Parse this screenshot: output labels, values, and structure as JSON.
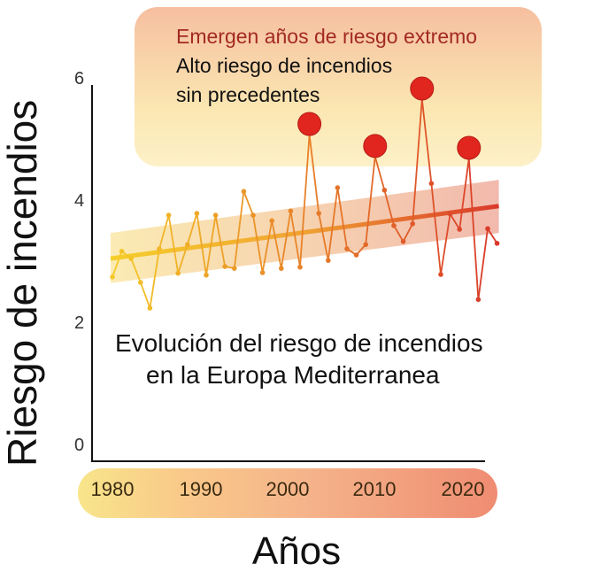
{
  "chart_data": {
    "type": "line",
    "title": "Evolución del riesgo de incendios en la Europa Mediterranea",
    "title_lines": [
      "Evolución del riesgo de incendios",
      "en la Europa Mediterranea"
    ],
    "xlabel": "Años",
    "ylabel": "Riesgo de incendios",
    "ylim": [
      0,
      6
    ],
    "yticks": [
      "0",
      "2",
      "4",
      "6"
    ],
    "xticks": [
      "1980",
      "1990",
      "2000",
      "2010",
      "2020"
    ],
    "x": [
      1979,
      1980,
      1981,
      1982,
      1983,
      1984,
      1985,
      1986,
      1987,
      1988,
      1989,
      1990,
      1991,
      1992,
      1993,
      1994,
      1995,
      1996,
      1997,
      1998,
      1999,
      2000,
      2001,
      2002,
      2003,
      2004,
      2005,
      2006,
      2007,
      2008,
      2009,
      2010,
      2011,
      2012,
      2013,
      2014,
      2015,
      2016,
      2017,
      2018,
      2019,
      2020
    ],
    "series": [
      {
        "name": "Riesgo de incendios",
        "values": [
          2.8,
          3.22,
          3.1,
          2.71,
          2.29,
          3.26,
          3.81,
          2.86,
          3.33,
          3.84,
          2.83,
          3.81,
          2.97,
          2.94,
          4.2,
          3.81,
          2.87,
          3.72,
          2.94,
          3.88,
          2.96,
          5.13,
          3.84,
          3.07,
          4.26,
          3.26,
          3.16,
          3.33,
          4.77,
          4.22,
          3.64,
          3.38,
          3.67,
          5.71,
          4.33,
          2.84,
          3.83,
          3.58,
          4.74,
          2.43,
          3.59,
          3.35
        ]
      },
      {
        "name": "Tendencia",
        "values_start_end": [
          3.1,
          3.96
        ],
        "band_start": [
          2.7,
          3.52
        ],
        "band_end": [
          3.52,
          4.39
        ]
      }
    ],
    "extreme_years": [
      2000,
      2007,
      2012,
      2017
    ],
    "annotation": {
      "heading": "Emergen años de riesgo extremo",
      "line1": "Alto riesgo de incendios",
      "line2": "sin precedentes"
    },
    "colors": {
      "extreme": "#e0261f",
      "heading": "#a32a22",
      "start": "#f5cf2a",
      "end": "#d9382a"
    }
  }
}
